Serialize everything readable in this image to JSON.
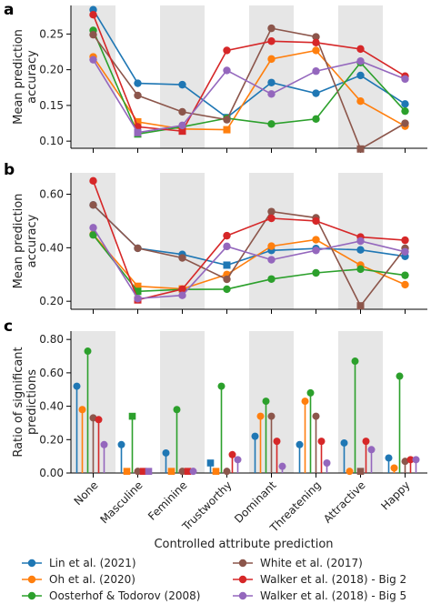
{
  "chart_data": [
    {
      "panel_label": "a",
      "type": "line",
      "ylabel": "Mean prediction\naccuracy",
      "ylim": [
        0.09,
        0.29
      ],
      "yticks": [
        0.1,
        0.15,
        0.2,
        0.25
      ],
      "categories": [
        "None",
        "Masculine",
        "Feminine",
        "Trustworthy",
        "Dominant",
        "Threatening",
        "Attractive",
        "Happy"
      ],
      "shaded_categories": [
        0,
        2,
        4,
        6
      ],
      "series": [
        {
          "name": "Lin et al. (2021)",
          "color": "#1f77b4",
          "values": [
            0.284,
            0.181,
            0.179,
            0.133,
            0.182,
            0.167,
            0.192,
            0.152
          ],
          "squares": [
            3
          ]
        },
        {
          "name": "Oh et al. (2020)",
          "color": "#ff7f0e",
          "values": [
            0.218,
            0.127,
            0.117,
            0.116,
            0.215,
            0.227,
            0.156,
            0.121
          ],
          "squares": [
            1,
            2,
            3
          ]
        },
        {
          "name": "Oosterhof & Todorov (2008)",
          "color": "#2ca02c",
          "values": [
            0.255,
            0.11,
            0.12,
            0.132,
            0.124,
            0.131,
            0.21,
            0.142
          ],
          "squares": [
            1
          ]
        },
        {
          "name": "White et al. (2017)",
          "color": "#8c564b",
          "values": [
            0.249,
            0.164,
            0.141,
            0.13,
            0.258,
            0.246,
            0.089,
            0.125
          ],
          "squares": [
            6
          ]
        },
        {
          "name": "Walker et al. (2018) - Big 2",
          "color": "#d62728",
          "values": [
            0.277,
            0.12,
            0.114,
            0.227,
            0.24,
            0.238,
            0.229,
            0.191
          ],
          "squares": [
            2
          ]
        },
        {
          "name": "Walker et al. (2018) - Big 5",
          "color": "#9467bd",
          "values": [
            0.214,
            0.112,
            0.122,
            0.199,
            0.166,
            0.198,
            0.212,
            0.187
          ],
          "squares": [
            1
          ]
        }
      ]
    },
    {
      "panel_label": "b",
      "type": "line",
      "ylabel": "Mean prediction\naccuracy",
      "ylim": [
        0.17,
        0.68
      ],
      "yticks": [
        0.2,
        0.4,
        0.6
      ],
      "categories": [
        "None",
        "Masculine",
        "Feminine",
        "Trustworthy",
        "Dominant",
        "Threatening",
        "Attractive",
        "Happy"
      ],
      "shaded_categories": [
        0,
        2,
        4,
        6
      ],
      "series": [
        {
          "name": "Lin et al. (2021)",
          "color": "#1f77b4",
          "values": [
            0.56,
            0.398,
            0.375,
            0.335,
            0.39,
            0.397,
            0.392,
            0.368
          ],
          "squares": [
            3
          ]
        },
        {
          "name": "Oh et al. (2020)",
          "color": "#ff7f0e",
          "values": [
            0.45,
            0.256,
            0.246,
            0.3,
            0.406,
            0.43,
            0.335,
            0.262
          ],
          "squares": [
            1,
            2
          ]
        },
        {
          "name": "Oosterhof & Todorov (2008)",
          "color": "#2ca02c",
          "values": [
            0.448,
            0.237,
            0.244,
            0.245,
            0.283,
            0.306,
            0.32,
            0.297
          ],
          "squares": [
            1
          ]
        },
        {
          "name": "White et al. (2017)",
          "color": "#8c564b",
          "values": [
            0.56,
            0.398,
            0.362,
            0.282,
            0.535,
            0.512,
            0.183,
            0.398
          ],
          "squares": [
            6
          ]
        },
        {
          "name": "Walker et al. (2018) - Big 2",
          "color": "#d62728",
          "values": [
            0.65,
            0.205,
            0.245,
            0.445,
            0.51,
            0.5,
            0.44,
            0.428
          ],
          "squares": [
            1
          ]
        },
        {
          "name": "Walker et al. (2018) - Big 5",
          "color": "#9467bd",
          "values": [
            0.475,
            0.21,
            0.222,
            0.405,
            0.355,
            0.39,
            0.425,
            0.385
          ],
          "squares": []
        }
      ]
    },
    {
      "panel_label": "c",
      "type": "stem",
      "ylabel": "Ratio of significant\npredictions",
      "xlabel": "Controlled attribute prediction",
      "ylim": [
        0.0,
        0.85
      ],
      "yticks": [
        0.0,
        0.2,
        0.4,
        0.6,
        0.8
      ],
      "categories": [
        "None",
        "Masculine",
        "Feminine",
        "Trustworthy",
        "Dominant",
        "Threatening",
        "Attractive",
        "Happy"
      ],
      "shaded_categories": [
        0,
        2,
        4,
        6
      ],
      "series": [
        {
          "name": "Lin et al. (2021)",
          "color": "#1f77b4",
          "values": [
            0.52,
            0.17,
            0.12,
            0.06,
            0.22,
            0.17,
            0.18,
            0.09
          ],
          "squares": [
            3
          ]
        },
        {
          "name": "Oh et al. (2020)",
          "color": "#ff7f0e",
          "values": [
            0.38,
            0.01,
            0.01,
            0.01,
            0.34,
            0.43,
            0.01,
            0.03
          ],
          "squares": [
            1,
            2,
            3
          ]
        },
        {
          "name": "Oosterhof & Todorov (2008)",
          "color": "#2ca02c",
          "values": [
            0.73,
            0.34,
            0.38,
            0.52,
            0.43,
            0.48,
            0.67,
            0.58
          ],
          "squares": [
            1
          ]
        },
        {
          "name": "White et al. (2017)",
          "color": "#8c564b",
          "values": [
            0.33,
            0.01,
            0.01,
            0.01,
            0.34,
            0.34,
            0.01,
            0.07
          ],
          "squares": [
            6
          ]
        },
        {
          "name": "Walker et al. (2018) - Big 2",
          "color": "#d62728",
          "values": [
            0.32,
            0.01,
            0.01,
            0.11,
            0.19,
            0.19,
            0.19,
            0.08
          ],
          "squares": [
            1,
            2
          ]
        },
        {
          "name": "Walker et al. (2018) - Big 5",
          "color": "#9467bd",
          "values": [
            0.17,
            0.01,
            0.01,
            0.08,
            0.04,
            0.06,
            0.14,
            0.08
          ],
          "squares": [
            1
          ]
        }
      ]
    }
  ],
  "legend": [
    {
      "label": "Lin et al. (2021)",
      "color": "#1f77b4"
    },
    {
      "label": "White et al. (2017)",
      "color": "#8c564b"
    },
    {
      "label": "Oh et al. (2020)",
      "color": "#ff7f0e"
    },
    {
      "label": "Walker et al. (2018) - Big 2",
      "color": "#d62728"
    },
    {
      "label": "Oosterhof & Todorov (2008)",
      "color": "#2ca02c"
    },
    {
      "label": "Walker et al. (2018) - Big 5",
      "color": "#9467bd"
    }
  ]
}
